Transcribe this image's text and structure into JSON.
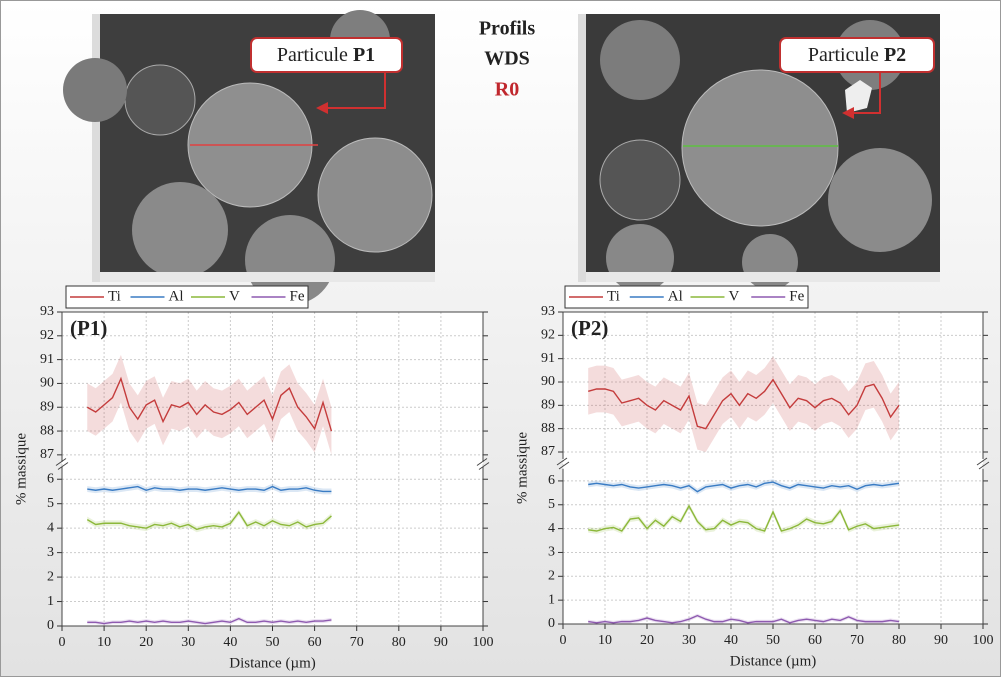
{
  "header": {
    "title": "Profils",
    "subtitle": "WDS",
    "sample": "R0"
  },
  "images": [
    {
      "label": "Particule",
      "particle": "P1"
    },
    {
      "label": "Particule",
      "particle": "P2"
    }
  ],
  "chart_data": [
    {
      "type": "line",
      "title": "(P1)",
      "x_label": "Distance (µm)",
      "y_label": "% massique",
      "x": [
        6,
        8,
        10,
        12,
        14,
        16,
        18,
        20,
        22,
        24,
        26,
        28,
        30,
        32,
        34,
        36,
        38,
        40,
        42,
        44,
        46,
        48,
        50,
        52,
        54,
        56,
        58,
        60,
        62,
        64
      ],
      "xlim": [
        0,
        100
      ],
      "xticks": [
        0,
        10,
        20,
        30,
        40,
        50,
        60,
        70,
        80,
        90,
        100
      ],
      "ylim": [
        0,
        93
      ],
      "ybreak": [
        6.5,
        86.7
      ],
      "yticks": [
        0,
        1,
        2,
        3,
        4,
        5,
        6,
        87,
        88,
        89,
        90,
        91,
        92,
        93
      ],
      "grid": true,
      "series": [
        {
          "name": "Ti",
          "color": "#c43c3c",
          "band": 1.0,
          "values": [
            89.0,
            88.8,
            89.1,
            89.4,
            90.2,
            89.0,
            88.5,
            89.1,
            89.3,
            88.4,
            89.1,
            89.0,
            89.2,
            88.7,
            89.1,
            88.8,
            88.7,
            88.9,
            89.2,
            88.7,
            89.0,
            89.3,
            88.5,
            89.5,
            89.8,
            89.0,
            88.6,
            88.1,
            89.2,
            88.0
          ]
        },
        {
          "name": "Al",
          "color": "#3a7cc4",
          "band": 0.12,
          "values": [
            5.6,
            5.55,
            5.6,
            5.55,
            5.6,
            5.65,
            5.7,
            5.55,
            5.65,
            5.6,
            5.6,
            5.55,
            5.6,
            5.6,
            5.55,
            5.6,
            5.65,
            5.6,
            5.55,
            5.6,
            5.6,
            5.55,
            5.7,
            5.55,
            5.6,
            5.6,
            5.65,
            5.55,
            5.5,
            5.5
          ]
        },
        {
          "name": "V",
          "color": "#8cb83a",
          "band": 0.12,
          "values": [
            4.35,
            4.15,
            4.2,
            4.2,
            4.2,
            4.1,
            4.05,
            4.0,
            4.15,
            4.1,
            4.2,
            4.05,
            4.15,
            3.95,
            4.05,
            4.1,
            4.05,
            4.2,
            4.65,
            4.1,
            4.25,
            4.1,
            4.3,
            4.15,
            4.1,
            4.25,
            4.05,
            4.15,
            4.2,
            4.5
          ]
        },
        {
          "name": "Fe",
          "color": "#8e5ab0",
          "band": 0.08,
          "values": [
            0.15,
            0.15,
            0.1,
            0.15,
            0.15,
            0.2,
            0.15,
            0.2,
            0.15,
            0.2,
            0.15,
            0.15,
            0.2,
            0.15,
            0.1,
            0.15,
            0.2,
            0.15,
            0.3,
            0.15,
            0.15,
            0.2,
            0.15,
            0.2,
            0.15,
            0.2,
            0.15,
            0.2,
            0.2,
            0.25
          ]
        }
      ]
    },
    {
      "type": "line",
      "title": "(P2)",
      "x_label": "Distance (µm)",
      "y_label": "% massique",
      "x": [
        6,
        8,
        10,
        12,
        14,
        16,
        18,
        20,
        22,
        24,
        26,
        28,
        30,
        32,
        34,
        36,
        38,
        40,
        42,
        44,
        46,
        48,
        50,
        52,
        54,
        56,
        58,
        60,
        62,
        64,
        66,
        68,
        70,
        72,
        74,
        76,
        78,
        80
      ],
      "xlim": [
        0,
        100
      ],
      "xticks": [
        0,
        10,
        20,
        30,
        40,
        50,
        60,
        70,
        80,
        90,
        100
      ],
      "ylim": [
        0,
        93
      ],
      "ybreak": [
        6.5,
        86.7
      ],
      "yticks": [
        0,
        1,
        2,
        3,
        4,
        5,
        6,
        87,
        88,
        89,
        90,
        91,
        92,
        93
      ],
      "grid": true,
      "series": [
        {
          "name": "Ti",
          "color": "#c43c3c",
          "band": 1.0,
          "values": [
            89.6,
            89.7,
            89.7,
            89.6,
            89.1,
            89.2,
            89.3,
            89.0,
            88.8,
            89.2,
            89.0,
            88.8,
            89.4,
            88.1,
            88.0,
            88.6,
            89.2,
            89.5,
            89.0,
            89.5,
            89.3,
            89.6,
            90.1,
            89.5,
            88.9,
            89.3,
            89.2,
            88.9,
            89.2,
            89.3,
            89.1,
            88.6,
            89.0,
            89.8,
            89.9,
            89.3,
            88.5,
            89.0
          ]
        },
        {
          "name": "Al",
          "color": "#3a7cc4",
          "band": 0.12,
          "values": [
            5.85,
            5.9,
            5.85,
            5.8,
            5.85,
            5.75,
            5.7,
            5.75,
            5.8,
            5.85,
            5.8,
            5.7,
            5.8,
            5.55,
            5.75,
            5.8,
            5.85,
            5.7,
            5.8,
            5.85,
            5.75,
            5.9,
            5.95,
            5.8,
            5.7,
            5.85,
            5.8,
            5.75,
            5.7,
            5.8,
            5.75,
            5.8,
            5.65,
            5.8,
            5.85,
            5.8,
            5.85,
            5.9
          ]
        },
        {
          "name": "V",
          "color": "#8cb83a",
          "band": 0.12,
          "values": [
            3.95,
            3.9,
            4.0,
            4.05,
            3.9,
            4.4,
            4.45,
            4.0,
            4.35,
            4.1,
            4.5,
            4.3,
            4.95,
            4.3,
            3.95,
            4.0,
            4.35,
            4.15,
            4.3,
            4.25,
            4.0,
            3.9,
            4.7,
            3.9,
            4.0,
            4.15,
            4.4,
            4.25,
            4.2,
            4.3,
            4.75,
            3.95,
            4.1,
            4.2,
            4.0,
            4.05,
            4.1,
            4.15
          ]
        },
        {
          "name": "Fe",
          "color": "#8e5ab0",
          "band": 0.08,
          "values": [
            0.1,
            0.05,
            0.1,
            0.05,
            0.1,
            0.1,
            0.15,
            0.25,
            0.15,
            0.1,
            0.05,
            0.1,
            0.2,
            0.35,
            0.2,
            0.1,
            0.1,
            0.2,
            0.15,
            0.05,
            0.1,
            0.1,
            0.1,
            0.2,
            0.05,
            0.15,
            0.2,
            0.15,
            0.1,
            0.2,
            0.15,
            0.3,
            0.15,
            0.1,
            0.1,
            0.1,
            0.15,
            0.1
          ]
        }
      ]
    }
  ]
}
